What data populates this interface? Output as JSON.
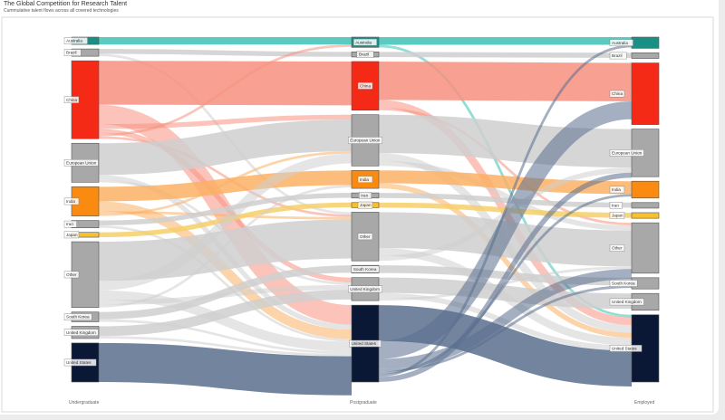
{
  "chart_data": {
    "type": "sankey",
    "title": "The Global Competition for Research Talent",
    "subtitle": "Cummulative talent flows across all covered technologies",
    "stages": [
      "Undergraduate",
      "Postgraduate",
      "Employed"
    ],
    "nodes": {
      "Undergraduate": [
        {
          "label": "Australia",
          "color": "#1a8f86",
          "value": 3
        },
        {
          "label": "Brazil",
          "color": "#a8a8a8",
          "value": 3
        },
        {
          "label": "China",
          "color": "#f42a17",
          "value": 32
        },
        {
          "label": "European Union",
          "color": "#a8a8a8",
          "value": 16
        },
        {
          "label": "India",
          "color": "#fb8a10",
          "value": 12
        },
        {
          "label": "Iran",
          "color": "#a8a8a8",
          "value": 3
        },
        {
          "label": "Japan",
          "color": "#f6c02e",
          "value": 2
        },
        {
          "label": "Other",
          "color": "#a8a8a8",
          "value": 27
        },
        {
          "label": "South Korea",
          "color": "#a8a8a8",
          "value": 4
        },
        {
          "label": "United Kingdom",
          "color": "#a8a8a8",
          "value": 5
        },
        {
          "label": "United States",
          "color": "#0a1836",
          "value": 16
        }
      ],
      "Postgraduate": [
        {
          "label": "Australia",
          "color": "#1a8f86",
          "value": 4
        },
        {
          "label": "Brazil",
          "color": "#a8a8a8",
          "value": 2
        },
        {
          "label": "China",
          "color": "#f42a17",
          "value": 19
        },
        {
          "label": "European Union",
          "color": "#a8a8a8",
          "value": 20
        },
        {
          "label": "India",
          "color": "#fb8a10",
          "value": 7
        },
        {
          "label": "Iran",
          "color": "#a8a8a8",
          "value": 2
        },
        {
          "label": "Japan",
          "color": "#f6c02e",
          "value": 2
        },
        {
          "label": "Other",
          "color": "#a8a8a8",
          "value": 19
        },
        {
          "label": "South Korea",
          "color": "#a8a8a8",
          "value": 3
        },
        {
          "label": "United Kingdom",
          "color": "#a8a8a8",
          "value": 9
        },
        {
          "label": "United States",
          "color": "#0a1836",
          "value": 30
        }
      ],
      "Employed": [
        {
          "label": "Australia",
          "color": "#1a8f86",
          "value": 4
        },
        {
          "label": "Brazil",
          "color": "#a8a8a8",
          "value": 2
        },
        {
          "label": "China",
          "color": "#f42a17",
          "value": 22
        },
        {
          "label": "European Union",
          "color": "#a8a8a8",
          "value": 17
        },
        {
          "label": "India",
          "color": "#fb8a10",
          "value": 6
        },
        {
          "label": "Iran",
          "color": "#a8a8a8",
          "value": 2
        },
        {
          "label": "Japan",
          "color": "#f6c02e",
          "value": 2
        },
        {
          "label": "Other",
          "color": "#a8a8a8",
          "value": 18
        },
        {
          "label": "South Korea",
          "color": "#a8a8a8",
          "value": 4
        },
        {
          "label": "United Kingdom",
          "color": "#a8a8a8",
          "value": 6
        },
        {
          "label": "United States",
          "color": "#0a1836",
          "value": 24
        }
      ]
    },
    "links_stage1": [
      [
        "Australia",
        "Australia",
        3
      ],
      [
        "Brazil",
        "Brazil",
        2
      ],
      [
        "Brazil",
        "Other",
        1
      ],
      [
        "China",
        "China",
        18
      ],
      [
        "China",
        "United States",
        8
      ],
      [
        "China",
        "European Union",
        2
      ],
      [
        "China",
        "United Kingdom",
        2
      ],
      [
        "China",
        "Australia",
        1
      ],
      [
        "China",
        "Other",
        1
      ],
      [
        "European Union",
        "European Union",
        13
      ],
      [
        "European Union",
        "United States",
        2
      ],
      [
        "European Union",
        "United Kingdom",
        1
      ],
      [
        "India",
        "India",
        6
      ],
      [
        "India",
        "United States",
        4
      ],
      [
        "India",
        "Other",
        1
      ],
      [
        "India",
        "European Union",
        1
      ],
      [
        "Iran",
        "Iran",
        2
      ],
      [
        "Iran",
        "United States",
        1
      ],
      [
        "Japan",
        "Japan",
        2
      ],
      [
        "Other",
        "Other",
        16
      ],
      [
        "Other",
        "European Union",
        4
      ],
      [
        "Other",
        "United States",
        4
      ],
      [
        "Other",
        "United Kingdom",
        2
      ],
      [
        "Other",
        "India",
        1
      ],
      [
        "South Korea",
        "South Korea",
        3
      ],
      [
        "South Korea",
        "United States",
        1
      ],
      [
        "United Kingdom",
        "United Kingdom",
        4
      ],
      [
        "United Kingdom",
        "United States",
        1
      ],
      [
        "United States",
        "United States",
        16
      ]
    ],
    "links_stage2": [
      [
        "Australia",
        "Australia",
        3
      ],
      [
        "Australia",
        "United States",
        1
      ],
      [
        "Brazil",
        "Brazil",
        2
      ],
      [
        "China",
        "China",
        15
      ],
      [
        "China",
        "United States",
        3
      ],
      [
        "China",
        "Other",
        1
      ],
      [
        "European Union",
        "European Union",
        15
      ],
      [
        "European Union",
        "United States",
        3
      ],
      [
        "European Union",
        "Other",
        2
      ],
      [
        "India",
        "India",
        5
      ],
      [
        "India",
        "United States",
        2
      ],
      [
        "Iran",
        "Iran",
        2
      ],
      [
        "Japan",
        "Japan",
        2
      ],
      [
        "Other",
        "Other",
        14
      ],
      [
        "Other",
        "United States",
        3
      ],
      [
        "Other",
        "European Union",
        2
      ],
      [
        "South Korea",
        "South Korea",
        3
      ],
      [
        "United Kingdom",
        "United Kingdom",
        6
      ],
      [
        "United Kingdom",
        "United States",
        2
      ],
      [
        "United Kingdom",
        "Other",
        1
      ],
      [
        "United States",
        "United States",
        14
      ],
      [
        "United States",
        "China",
        7
      ],
      [
        "United States",
        "Other",
        4
      ],
      [
        "United States",
        "South Korea",
        1
      ],
      [
        "United States",
        "India",
        1
      ],
      [
        "United States",
        "Australia",
        1
      ],
      [
        "United States",
        "European Union",
        2
      ]
    ]
  }
}
